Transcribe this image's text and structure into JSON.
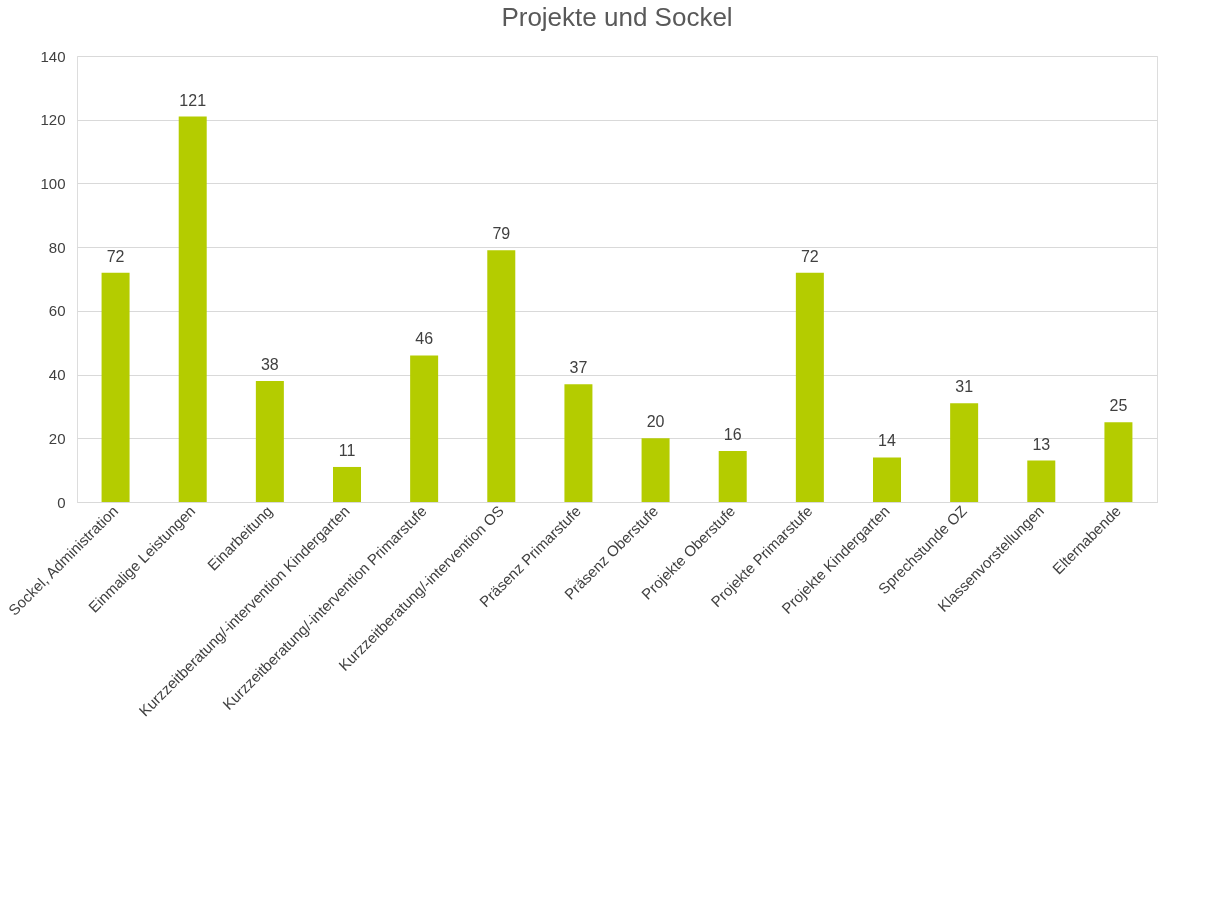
{
  "chart_data": {
    "type": "bar",
    "title": "Projekte und Sockel",
    "categories": [
      "Sockel, Administration",
      "Einmalige Leistungen",
      "Einarbeitung",
      "Kurzzeitberatung/-intervention Kindergarten",
      "Kurzzeitberatung/-intervention Primarstufe",
      "Kurzzeitberatung/-intervention OS",
      "Präsenz Primarstufe",
      "Präsenz Oberstufe",
      "Projekte Oberstufe",
      "Projekte Primarstufe",
      "Projekte Kindergarten",
      "Sprechstunde OZ",
      "Klassenvorstellungen",
      "Elternabende"
    ],
    "values": [
      72,
      121,
      38,
      11,
      46,
      79,
      37,
      20,
      16,
      72,
      14,
      31,
      13,
      25
    ],
    "color": "#b4cc00",
    "ylim": [
      0,
      140
    ],
    "yticks": [
      0,
      20,
      40,
      60,
      80,
      100,
      120,
      140
    ],
    "grid": "y",
    "data_labels": true
  }
}
